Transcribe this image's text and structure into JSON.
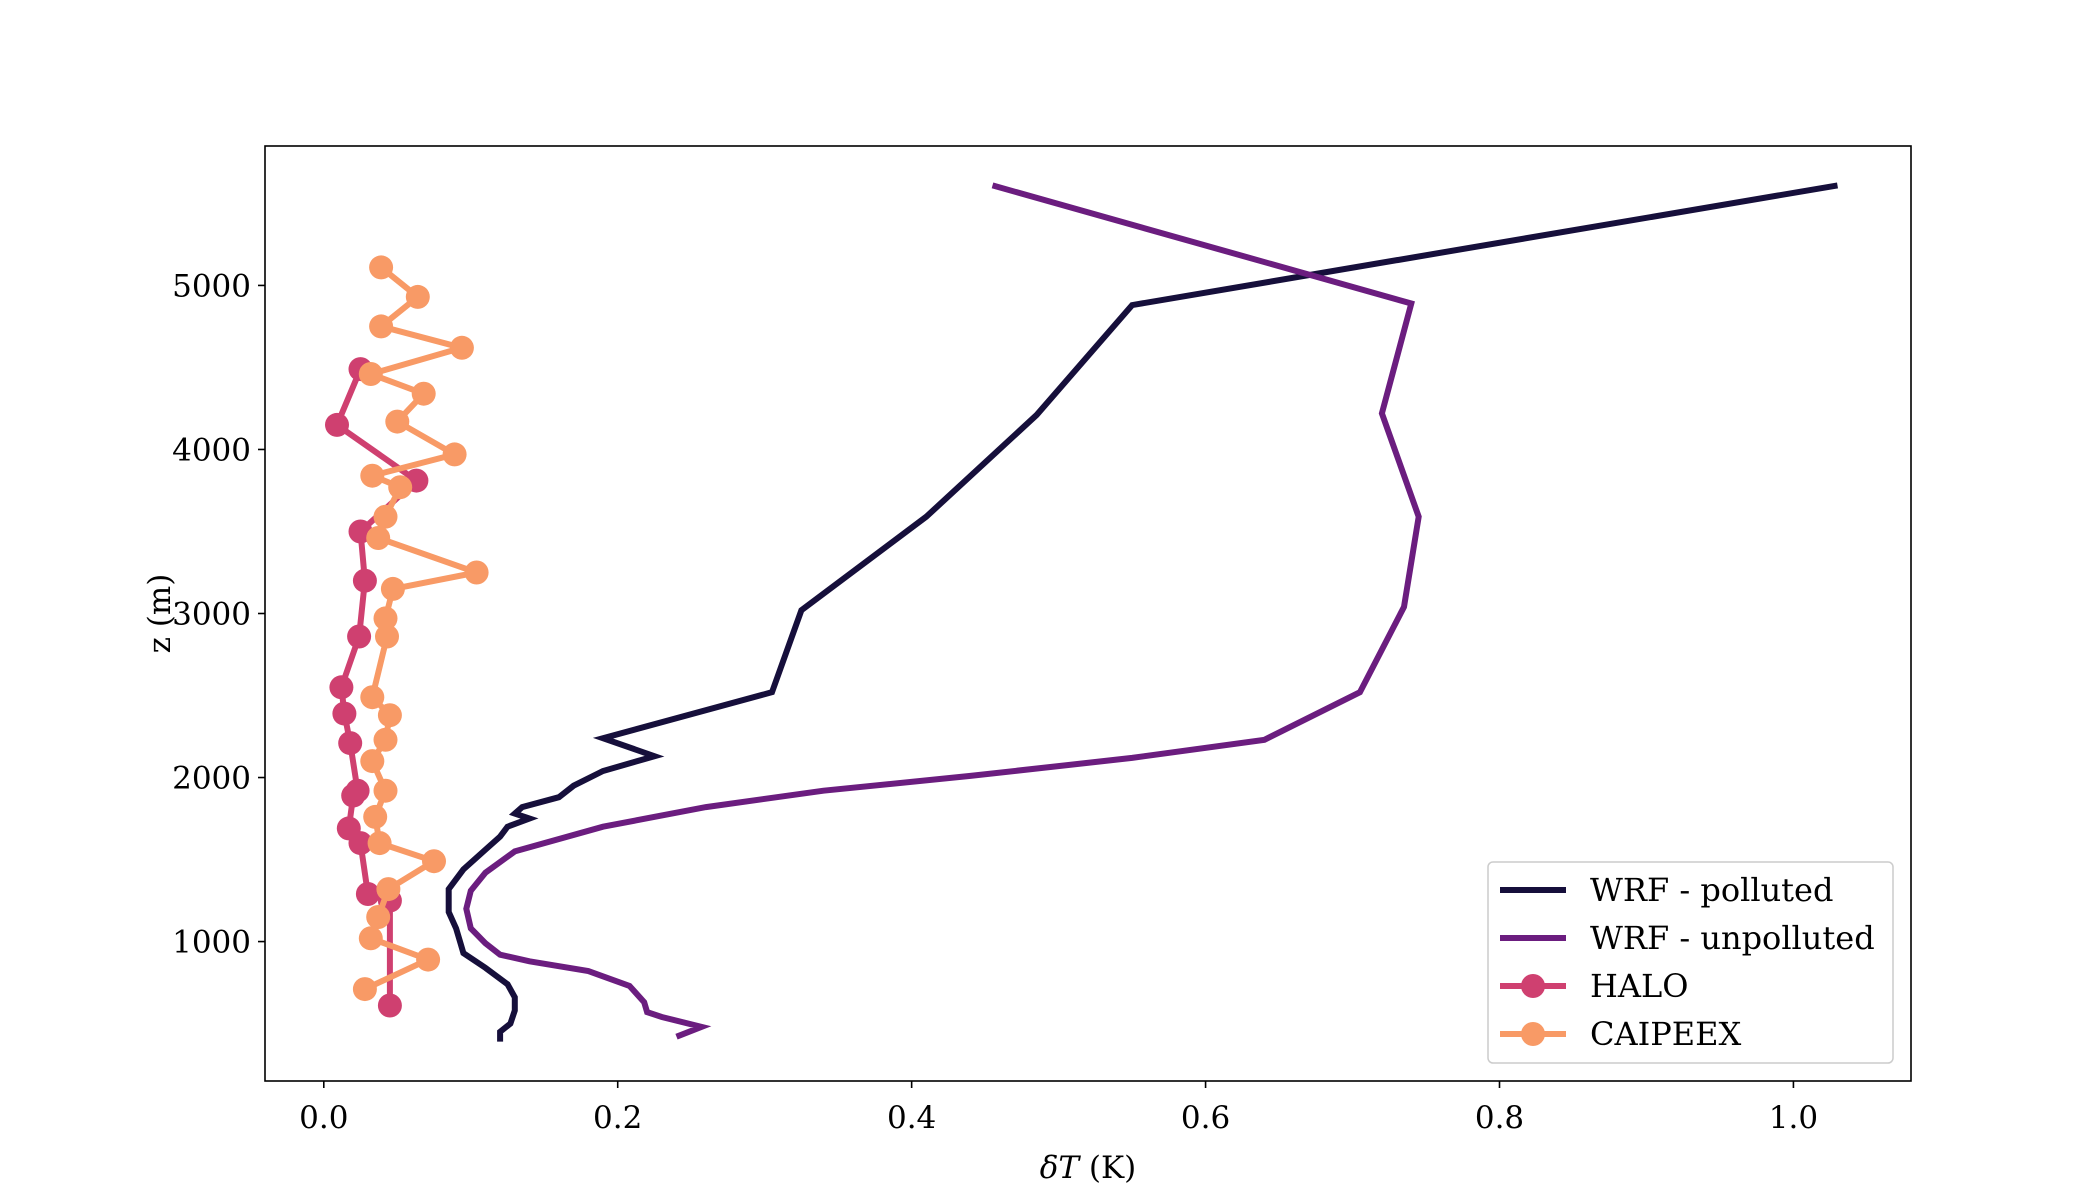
{
  "chart_data": {
    "type": "line",
    "title": "",
    "xlabel": "δT (K)",
    "ylabel": "z (m)",
    "xlim": [
      -0.04,
      1.08
    ],
    "ylim": [
      150,
      5850
    ],
    "xticks": [
      0.0,
      0.2,
      0.4,
      0.6,
      0.8,
      1.0
    ],
    "xtick_labels": [
      "0.0",
      "0.2",
      "0.4",
      "0.6",
      "0.8",
      "1.0"
    ],
    "yticks": [
      1000,
      2000,
      3000,
      4000,
      5000
    ],
    "ytick_labels": [
      "1000",
      "2000",
      "3000",
      "4000",
      "5000"
    ],
    "grid": false,
    "legend_position": "lower-right",
    "series": [
      {
        "name": "WRF - polluted",
        "color": "#160f3b",
        "marker": false,
        "points": [
          [
            0.12,
            390
          ],
          [
            0.12,
            450
          ],
          [
            0.127,
            500
          ],
          [
            0.13,
            580
          ],
          [
            0.13,
            660
          ],
          [
            0.125,
            740
          ],
          [
            0.11,
            840
          ],
          [
            0.095,
            930
          ],
          [
            0.093,
            990
          ],
          [
            0.09,
            1080
          ],
          [
            0.085,
            1180
          ],
          [
            0.085,
            1320
          ],
          [
            0.095,
            1440
          ],
          [
            0.11,
            1560
          ],
          [
            0.12,
            1640
          ],
          [
            0.125,
            1700
          ],
          [
            0.14,
            1750
          ],
          [
            0.13,
            1780
          ],
          [
            0.135,
            1820
          ],
          [
            0.16,
            1880
          ],
          [
            0.17,
            1950
          ],
          [
            0.19,
            2040
          ],
          [
            0.225,
            2130
          ],
          [
            0.19,
            2240
          ],
          [
            0.305,
            2520
          ],
          [
            0.325,
            3020
          ],
          [
            0.41,
            3590
          ],
          [
            0.485,
            4210
          ],
          [
            0.55,
            4880
          ],
          [
            1.03,
            5610
          ]
        ]
      },
      {
        "name": "WRF - unpolluted",
        "color": "#6b1d7f",
        "marker": false,
        "points": [
          [
            0.24,
            420
          ],
          [
            0.257,
            480
          ],
          [
            0.23,
            540
          ],
          [
            0.22,
            570
          ],
          [
            0.218,
            630
          ],
          [
            0.208,
            730
          ],
          [
            0.18,
            820
          ],
          [
            0.14,
            880
          ],
          [
            0.12,
            920
          ],
          [
            0.11,
            990
          ],
          [
            0.1,
            1080
          ],
          [
            0.097,
            1200
          ],
          [
            0.1,
            1310
          ],
          [
            0.11,
            1420
          ],
          [
            0.13,
            1550
          ],
          [
            0.19,
            1700
          ],
          [
            0.26,
            1820
          ],
          [
            0.34,
            1920
          ],
          [
            0.44,
            2010
          ],
          [
            0.55,
            2120
          ],
          [
            0.64,
            2230
          ],
          [
            0.705,
            2520
          ],
          [
            0.735,
            3040
          ],
          [
            0.745,
            3590
          ],
          [
            0.72,
            4220
          ],
          [
            0.74,
            4890
          ],
          [
            0.455,
            5610
          ]
        ]
      },
      {
        "name": "HALO",
        "color": "#cf4070",
        "marker": true,
        "points": [
          [
            0.045,
            610
          ],
          [
            0.045,
            1250
          ],
          [
            0.03,
            1290
          ],
          [
            0.025,
            1600
          ],
          [
            0.017,
            1690
          ],
          [
            0.02,
            1890
          ],
          [
            0.023,
            1920
          ],
          [
            0.018,
            2210
          ],
          [
            0.014,
            2390
          ],
          [
            0.012,
            2550
          ],
          [
            0.024,
            2860
          ],
          [
            0.028,
            3200
          ],
          [
            0.025,
            3500
          ],
          [
            0.063,
            3810
          ],
          [
            0.009,
            4150
          ],
          [
            0.025,
            4490
          ]
        ]
      },
      {
        "name": "CAIPEEX",
        "color": "#f89a66",
        "marker": true,
        "points": [
          [
            0.028,
            710
          ],
          [
            0.071,
            890
          ],
          [
            0.032,
            1020
          ],
          [
            0.037,
            1150
          ],
          [
            0.044,
            1320
          ],
          [
            0.075,
            1490
          ],
          [
            0.038,
            1600
          ],
          [
            0.035,
            1760
          ],
          [
            0.042,
            1920
          ],
          [
            0.033,
            2100
          ],
          [
            0.042,
            2230
          ],
          [
            0.045,
            2380
          ],
          [
            0.033,
            2490
          ],
          [
            0.043,
            2860
          ],
          [
            0.042,
            2970
          ],
          [
            0.047,
            3150
          ],
          [
            0.104,
            3250
          ],
          [
            0.037,
            3460
          ],
          [
            0.042,
            3590
          ],
          [
            0.052,
            3770
          ],
          [
            0.033,
            3840
          ],
          [
            0.089,
            3970
          ],
          [
            0.05,
            4170
          ],
          [
            0.068,
            4340
          ],
          [
            0.032,
            4460
          ],
          [
            0.094,
            4620
          ],
          [
            0.039,
            4750
          ],
          [
            0.064,
            4930
          ],
          [
            0.039,
            5110
          ]
        ]
      }
    ]
  }
}
